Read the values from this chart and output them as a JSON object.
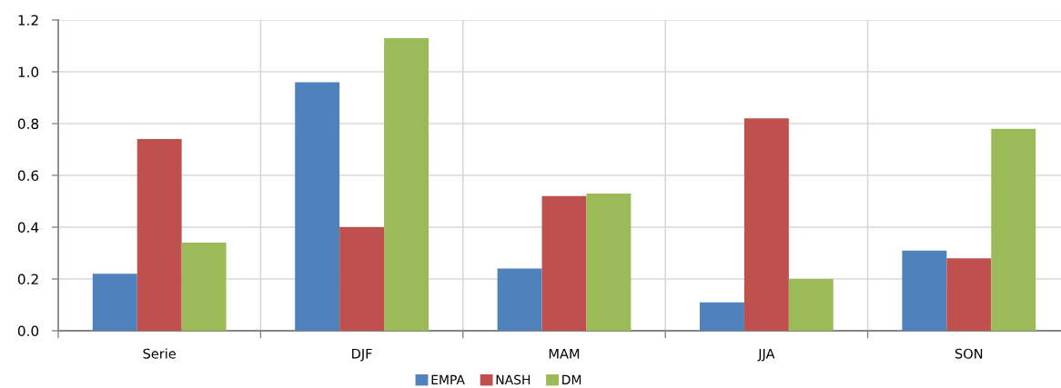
{
  "chart_data": {
    "type": "bar",
    "categories": [
      "Serie",
      "DJF",
      "MAM",
      "JJA",
      "SON"
    ],
    "series": [
      {
        "name": "EMPA",
        "color": "#4f81bd",
        "values": [
          0.22,
          0.96,
          0.24,
          0.11,
          0.31
        ]
      },
      {
        "name": "NASH",
        "color": "#c0504d",
        "values": [
          0.74,
          0.4,
          0.52,
          0.82,
          0.28
        ]
      },
      {
        "name": "DM",
        "color": "#9bbb59",
        "values": [
          0.34,
          1.13,
          0.53,
          0.2,
          0.78
        ]
      }
    ],
    "ylim": [
      0,
      1.2
    ],
    "yticks": [
      {
        "value": 0,
        "label": "0.0"
      },
      0.2,
      0.4,
      0.6,
      0.8,
      {
        "value": 1,
        "label": "1.0"
      },
      1.2
    ],
    "grid": true,
    "legend": "bottom"
  }
}
